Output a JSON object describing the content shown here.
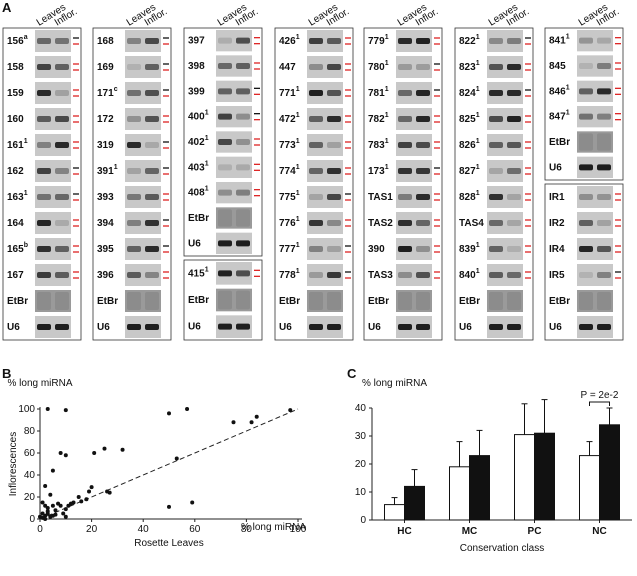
{
  "panel_a": {
    "label": "A",
    "lanes": [
      "Leaves",
      "Inflor."
    ],
    "boxes": [
      {
        "rows": [
          {
            "label": "156",
            "sup": "a"
          },
          {
            "label": "158"
          },
          {
            "label": "159"
          },
          {
            "label": "160"
          },
          {
            "label": "161",
            "sup": "1"
          },
          {
            "label": "162"
          },
          {
            "label": "163",
            "sup": "1"
          },
          {
            "label": "164"
          },
          {
            "label": "165",
            "sup": "b"
          },
          {
            "label": "167"
          },
          {
            "label": "EtBr"
          },
          {
            "label": "U6"
          }
        ]
      },
      {
        "rows": [
          {
            "label": "168"
          },
          {
            "label": "169"
          },
          {
            "label": "171",
            "sup": "c"
          },
          {
            "label": "172"
          },
          {
            "label": "319"
          },
          {
            "label": "391",
            "sup": "1"
          },
          {
            "label": "393"
          },
          {
            "label": "394"
          },
          {
            "label": "395"
          },
          {
            "label": "396"
          },
          {
            "label": "EtBr"
          },
          {
            "label": "U6"
          }
        ]
      },
      {
        "rows": [
          {
            "label": "397"
          },
          {
            "label": "398"
          },
          {
            "label": "399"
          },
          {
            "label": "400",
            "sup": "1"
          },
          {
            "label": "402",
            "sup": "1"
          },
          {
            "label": "403",
            "sup": "1"
          },
          {
            "label": "408",
            "sup": "1"
          },
          {
            "label": "EtBr"
          },
          {
            "label": "U6"
          }
        ]
      },
      {
        "rows": [
          {
            "label": "415",
            "sup": "1"
          },
          {
            "label": "EtBr"
          },
          {
            "label": "U6"
          }
        ]
      },
      {
        "rows": [
          {
            "label": "426",
            "sup": "1"
          },
          {
            "label": "447"
          },
          {
            "label": "771",
            "sup": "1"
          },
          {
            "label": "472",
            "sup": "1"
          },
          {
            "label": "773",
            "sup": "1"
          },
          {
            "label": "774",
            "sup": "1"
          },
          {
            "label": "775",
            "sup": "1"
          },
          {
            "label": "776",
            "sup": "1"
          },
          {
            "label": "777",
            "sup": "1"
          },
          {
            "label": "778",
            "sup": "1"
          },
          {
            "label": "EtBr"
          },
          {
            "label": "U6"
          }
        ]
      },
      {
        "rows": [
          {
            "label": "779",
            "sup": "1"
          },
          {
            "label": "780",
            "sup": "1"
          },
          {
            "label": "781",
            "sup": "1"
          },
          {
            "label": "782",
            "sup": "1"
          },
          {
            "label": "783",
            "sup": "1"
          },
          {
            "label": "173",
            "sup": "1"
          },
          {
            "label": "TAS1"
          },
          {
            "label": "TAS2"
          },
          {
            "label": "390"
          },
          {
            "label": "TAS3"
          },
          {
            "label": "EtBr"
          },
          {
            "label": "U6"
          }
        ]
      },
      {
        "rows": [
          {
            "label": "822",
            "sup": "1"
          },
          {
            "label": "823",
            "sup": "1"
          },
          {
            "label": "824",
            "sup": "1"
          },
          {
            "label": "825",
            "sup": "1"
          },
          {
            "label": "826",
            "sup": "1"
          },
          {
            "label": "827",
            "sup": "1"
          },
          {
            "label": "828",
            "sup": "1"
          },
          {
            "label": "TAS4"
          },
          {
            "label": "839",
            "sup": "1"
          },
          {
            "label": "840",
            "sup": "1"
          },
          {
            "label": "EtBr"
          },
          {
            "label": "U6"
          }
        ]
      },
      {
        "rows": [
          {
            "label": "841",
            "sup": "1"
          },
          {
            "label": "845"
          },
          {
            "label": "846",
            "sup": "1"
          },
          {
            "label": "847",
            "sup": "1"
          },
          {
            "label": "EtBr"
          },
          {
            "label": "U6"
          }
        ]
      },
      {
        "rows": [
          {
            "label": "IR1"
          },
          {
            "label": "IR2"
          },
          {
            "label": "IR4"
          },
          {
            "label": "IR5"
          },
          {
            "label": "EtBr"
          },
          {
            "label": "U6"
          }
        ]
      }
    ]
  },
  "chart_data": [
    {
      "type": "scatter",
      "panel": "B",
      "y_title": "% long miRNA",
      "y_axis_label": "Inflorescences",
      "x_title": "% long miRNA",
      "x_axis_label": "Rosette Leaves",
      "x": [
        3,
        10,
        50,
        57,
        75,
        82,
        84,
        97,
        25,
        32,
        21,
        8,
        10,
        5,
        50,
        53,
        59,
        15,
        20,
        19,
        13,
        16,
        18,
        26,
        2,
        4,
        1,
        2,
        3,
        5,
        7,
        8,
        6,
        10,
        12,
        1,
        2,
        3,
        4,
        5,
        1,
        0,
        2,
        6,
        9,
        11,
        27,
        10,
        3
      ],
      "values": [
        100,
        99,
        96,
        100,
        88,
        88,
        93,
        99,
        64,
        63,
        60,
        60,
        58,
        44,
        11,
        55,
        15,
        20,
        29,
        25,
        15,
        16,
        18,
        25,
        30,
        22,
        15,
        12,
        10,
        12,
        14,
        12,
        8,
        9,
        14,
        5,
        3,
        5,
        2,
        3,
        1,
        2,
        0,
        4,
        5,
        12,
        24,
        2,
        7
      ],
      "color": "#111111",
      "xlim": [
        0,
        100
      ],
      "ylim": [
        0,
        100
      ],
      "xticks": [
        0,
        20,
        40,
        60,
        80,
        100
      ],
      "yticks": [
        0,
        20,
        40,
        60,
        80,
        100
      ]
    },
    {
      "type": "bar",
      "panel": "C",
      "y_title": "% long miRNA",
      "x_axis_label": "Conservation class",
      "categories": [
        "HC",
        "MC",
        "PC",
        "NC"
      ],
      "series": [
        {
          "color": "#ffffff",
          "values": [
            5.5,
            19,
            30.5,
            23
          ],
          "errors": [
            2.5,
            9,
            11,
            5
          ]
        },
        {
          "color": "#111111",
          "values": [
            12,
            23,
            31,
            34
          ],
          "errors": [
            6,
            9,
            12,
            6
          ]
        }
      ],
      "ylim": [
        0,
        40
      ],
      "yticks": [
        0,
        10,
        20,
        30,
        40
      ],
      "annotation": "P = 2e-2"
    }
  ]
}
